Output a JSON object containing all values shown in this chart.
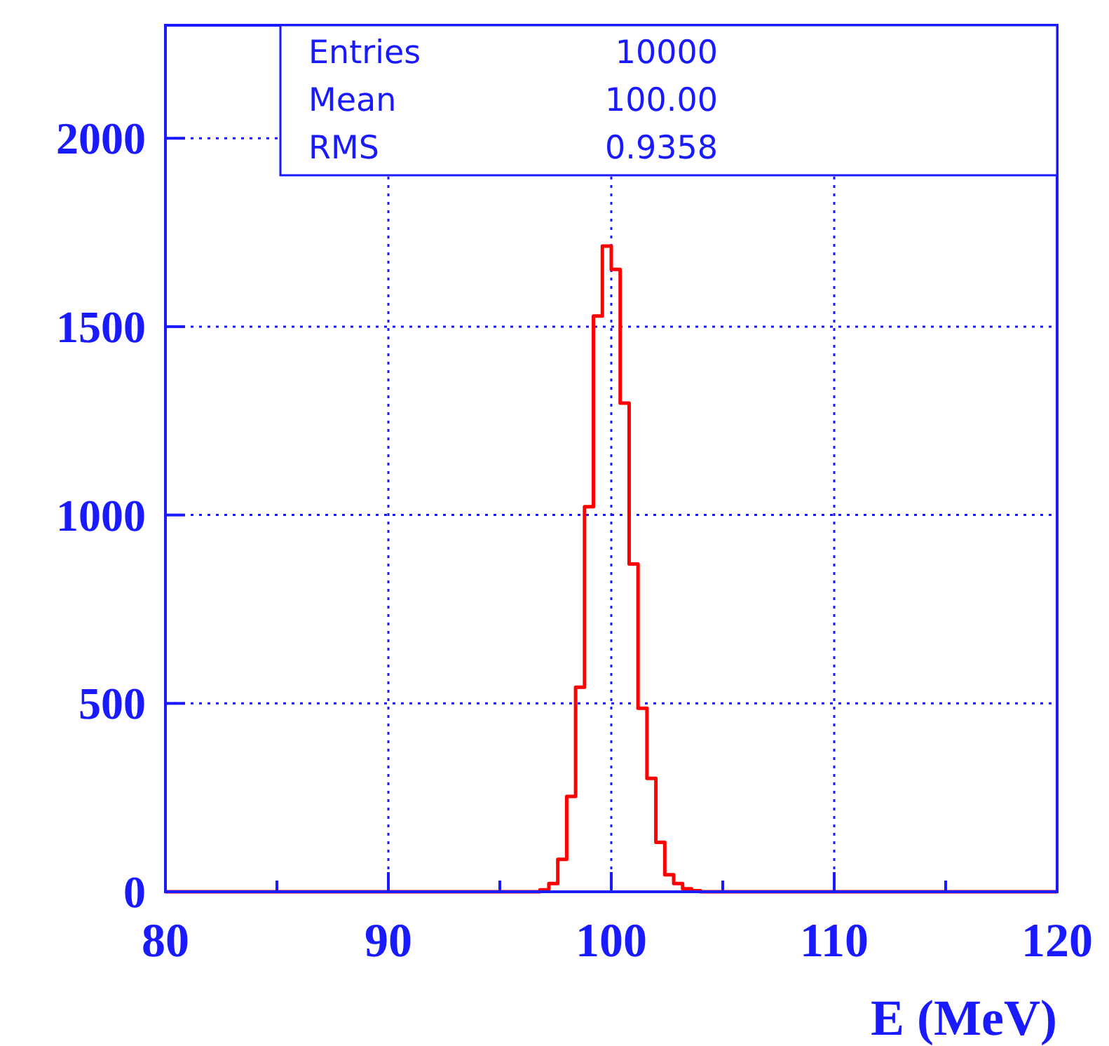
{
  "chart_data": {
    "type": "histogram",
    "xlabel": "E (MeV)",
    "color": "#ff0000",
    "bins": [
      80,
      80.4,
      80.8,
      81.2,
      81.6,
      82,
      82.4,
      82.8,
      83.2,
      83.6,
      84,
      84.4,
      84.8,
      85.2,
      85.6,
      86,
      86.4,
      86.8,
      87.2,
      87.6,
      88,
      88.4,
      88.8,
      89.2,
      89.6,
      90,
      90.4,
      90.8,
      91.2,
      91.6,
      92,
      92.4,
      92.8,
      93.2,
      93.6,
      94,
      94.4,
      94.8,
      95.2,
      95.6,
      96,
      96.4,
      96.8,
      97.2,
      97.6,
      98,
      98.4,
      98.8,
      99.2,
      99.6,
      100,
      100.4,
      100.8,
      101.2,
      101.6,
      102,
      102.4,
      102.8,
      103.2,
      103.6,
      104,
      104.4,
      104.8,
      105.2,
      105.6,
      106,
      106.4,
      106.8,
      107.2,
      107.6,
      108,
      108.4,
      108.8,
      109.2,
      109.6,
      110,
      110.4,
      110.8,
      111.2,
      111.6,
      112,
      112.4,
      112.8,
      113.2,
      113.6,
      114,
      114.4,
      114.8,
      115.2,
      115.6,
      116,
      116.4,
      116.8,
      117.2,
      117.6,
      118,
      118.4,
      118.8,
      119.2,
      119.6,
      120
    ],
    "values": [
      0,
      0,
      0,
      0,
      0,
      0,
      0,
      0,
      0,
      0,
      0,
      0,
      0,
      0,
      0,
      0,
      0,
      0,
      0,
      0,
      0,
      0,
      0,
      0,
      0,
      0,
      0,
      0,
      0,
      0,
      0,
      0,
      0,
      0,
      0,
      0,
      0,
      0,
      0,
      0,
      0,
      0,
      5,
      22,
      86,
      253,
      543,
      1022,
      1528,
      1714,
      1652,
      1297,
      870,
      487,
      301,
      131,
      45,
      22,
      8,
      3,
      0,
      0,
      0,
      0,
      0,
      0,
      0,
      0,
      0,
      0,
      0,
      0,
      0,
      0,
      0,
      0,
      0,
      0,
      0,
      0,
      0,
      0,
      0,
      0,
      0,
      0,
      0,
      0,
      0,
      0,
      0,
      0,
      0,
      0,
      0,
      0,
      0,
      0,
      0,
      0
    ],
    "xlim": [
      80,
      120
    ],
    "ylim": [
      0,
      2300
    ],
    "xticks": [
      80,
      {
        "value": 85,
        "label": null
      },
      90,
      {
        "value": 95,
        "label": null
      },
      100,
      {
        "value": 105,
        "label": null
      },
      110,
      {
        "value": 115,
        "label": null
      },
      120
    ],
    "yticks": [
      0,
      500,
      1000,
      1500,
      2000
    ],
    "grid": true,
    "annotations": [
      "Entries 10000",
      "Mean 100.00",
      "RMS 0.9358"
    ]
  }
}
